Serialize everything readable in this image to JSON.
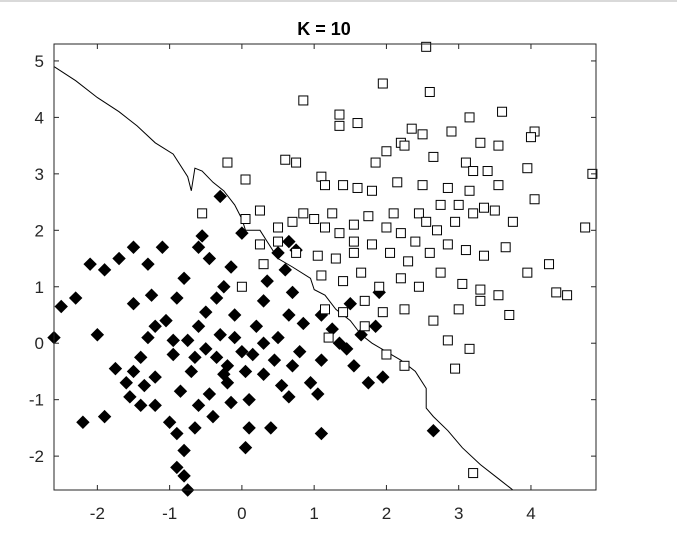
{
  "chart_data": {
    "type": "scatter",
    "title": "K = 10",
    "xlabel": "",
    "ylabel": "",
    "xlim": [
      -2.6,
      4.9
    ],
    "ylim": [
      -2.6,
      5.3
    ],
    "xticks": [
      -2,
      -1,
      0,
      1,
      2,
      3,
      4
    ],
    "yticks": [
      -2,
      -1,
      0,
      1,
      2,
      3,
      4,
      5
    ],
    "x_tick_labels": [
      "-2",
      "-1",
      "0",
      "1",
      "2",
      "3",
      "4"
    ],
    "y_tick_labels": [
      "-2",
      "-1",
      "0",
      "1",
      "2",
      "3",
      "4",
      "5"
    ],
    "grid": false,
    "series": [
      {
        "marker": "diamond",
        "fill": "#000000",
        "points": [
          [
            -2.6,
            0.1
          ],
          [
            -2.5,
            0.65
          ],
          [
            -2.3,
            0.8
          ],
          [
            -2.1,
            1.4
          ],
          [
            -1.9,
            1.3
          ],
          [
            -2.0,
            0.15
          ],
          [
            -2.2,
            -1.4
          ],
          [
            -1.9,
            -1.3
          ],
          [
            -1.7,
            1.5
          ],
          [
            -1.5,
            1.7
          ],
          [
            -1.3,
            1.4
          ],
          [
            -1.5,
            0.7
          ],
          [
            -1.6,
            -0.7
          ],
          [
            -1.4,
            -1.1
          ],
          [
            -1.2,
            -1.1
          ],
          [
            -1.0,
            -1.4
          ],
          [
            -0.9,
            -1.6
          ],
          [
            -0.8,
            -1.9
          ],
          [
            -0.9,
            -2.2
          ],
          [
            -0.8,
            -2.35
          ],
          [
            -0.75,
            -2.6
          ],
          [
            -1.1,
            1.7
          ],
          [
            -0.9,
            0.8
          ],
          [
            -1.05,
            0.4
          ],
          [
            -1.2,
            0.3
          ],
          [
            -1.3,
            0.1
          ],
          [
            -1.4,
            -0.25
          ],
          [
            -1.5,
            -0.5
          ],
          [
            -1.2,
            -0.6
          ],
          [
            -0.95,
            -0.2
          ],
          [
            -0.75,
            0.05
          ],
          [
            -0.6,
            0.3
          ],
          [
            -0.5,
            0.55
          ],
          [
            -0.35,
            0.8
          ],
          [
            -0.25,
            1.0
          ],
          [
            -0.15,
            1.35
          ],
          [
            -0.1,
            0.1
          ],
          [
            0.0,
            -0.15
          ],
          [
            0.05,
            -0.5
          ],
          [
            -0.2,
            -0.7
          ],
          [
            -0.45,
            -0.9
          ],
          [
            -0.6,
            -1.1
          ],
          [
            -0.65,
            -1.5
          ],
          [
            -0.4,
            -1.3
          ],
          [
            -0.15,
            -1.05
          ],
          [
            0.1,
            -1.0
          ],
          [
            0.3,
            -0.55
          ],
          [
            0.45,
            -0.3
          ],
          [
            0.5,
            0.1
          ],
          [
            0.55,
            -0.75
          ],
          [
            0.65,
            -0.95
          ],
          [
            0.7,
            -0.4
          ],
          [
            0.8,
            -0.15
          ],
          [
            0.85,
            0.35
          ],
          [
            0.7,
            0.9
          ],
          [
            0.6,
            1.3
          ],
          [
            0.5,
            1.6
          ],
          [
            0.65,
            1.8
          ],
          [
            0.75,
            1.65
          ],
          [
            0.4,
            -1.5
          ],
          [
            0.1,
            -1.5
          ],
          [
            0.05,
            -1.85
          ],
          [
            -0.55,
            1.9
          ],
          [
            -0.6,
            1.7
          ],
          [
            -0.45,
            1.5
          ],
          [
            -0.3,
            2.6
          ],
          [
            0.0,
            1.95
          ],
          [
            0.3,
            0.75
          ],
          [
            0.35,
            1.1
          ],
          [
            1.1,
            0.5
          ],
          [
            1.25,
            0.25
          ],
          [
            1.35,
            0.0
          ],
          [
            1.45,
            -0.1
          ],
          [
            1.55,
            -0.4
          ],
          [
            1.75,
            -0.7
          ],
          [
            1.95,
            -0.6
          ],
          [
            1.65,
            0.15
          ],
          [
            1.85,
            0.3
          ],
          [
            1.1,
            -0.3
          ],
          [
            1.05,
            -0.9
          ],
          [
            1.1,
            -1.6
          ],
          [
            0.95,
            -0.7
          ],
          [
            0.2,
            0.3
          ],
          [
            -0.1,
            0.5
          ],
          [
            -0.3,
            0.15
          ],
          [
            -0.5,
            -0.1
          ],
          [
            -0.7,
            -0.5
          ],
          [
            -0.85,
            -0.85
          ],
          [
            -1.25,
            0.85
          ],
          [
            -0.8,
            1.15
          ],
          [
            -0.35,
            -0.25
          ],
          [
            -0.2,
            -0.4
          ],
          [
            0.15,
            -0.2
          ],
          [
            0.3,
            0.0
          ],
          [
            2.65,
            -1.55
          ],
          [
            1.5,
            0.7
          ],
          [
            1.9,
            0.9
          ],
          [
            -1.75,
            -0.45
          ],
          [
            -1.55,
            -0.95
          ],
          [
            -1.35,
            -0.75
          ],
          [
            -0.95,
            0.05
          ],
          [
            -0.65,
            -0.25
          ],
          [
            -0.25,
            -0.55
          ],
          [
            0.65,
            0.5
          ]
        ]
      },
      {
        "marker": "square",
        "fill": "#ffffff",
        "points": [
          [
            2.55,
            5.25
          ],
          [
            1.95,
            4.6
          ],
          [
            2.6,
            4.45
          ],
          [
            0.85,
            4.3
          ],
          [
            1.35,
            4.05
          ],
          [
            1.35,
            3.85
          ],
          [
            1.6,
            3.9
          ],
          [
            3.15,
            4.0
          ],
          [
            3.6,
            4.1
          ],
          [
            2.35,
            3.8
          ],
          [
            2.5,
            3.7
          ],
          [
            2.9,
            3.75
          ],
          [
            4.05,
            3.75
          ],
          [
            4.0,
            3.65
          ],
          [
            3.3,
            3.55
          ],
          [
            3.55,
            3.5
          ],
          [
            2.2,
            3.55
          ],
          [
            2.25,
            3.5
          ],
          [
            2.0,
            3.4
          ],
          [
            2.65,
            3.3
          ],
          [
            3.1,
            3.2
          ],
          [
            3.2,
            3.05
          ],
          [
            3.4,
            3.05
          ],
          [
            3.95,
            3.1
          ],
          [
            4.85,
            3.0
          ],
          [
            -0.2,
            3.2
          ],
          [
            0.05,
            2.9
          ],
          [
            0.6,
            3.25
          ],
          [
            0.75,
            3.2
          ],
          [
            1.1,
            2.95
          ],
          [
            1.15,
            2.8
          ],
          [
            1.4,
            2.8
          ],
          [
            1.6,
            2.75
          ],
          [
            1.8,
            2.7
          ],
          [
            2.15,
            2.85
          ],
          [
            2.5,
            2.8
          ],
          [
            2.85,
            2.75
          ],
          [
            3.15,
            2.7
          ],
          [
            3.55,
            2.8
          ],
          [
            4.05,
            2.55
          ],
          [
            4.75,
            2.05
          ],
          [
            -0.55,
            2.3
          ],
          [
            0.05,
            2.2
          ],
          [
            0.25,
            2.35
          ],
          [
            0.5,
            2.05
          ],
          [
            0.7,
            2.15
          ],
          [
            0.85,
            2.3
          ],
          [
            1.0,
            2.2
          ],
          [
            1.15,
            2.05
          ],
          [
            1.35,
            1.95
          ],
          [
            1.55,
            2.1
          ],
          [
            1.75,
            2.25
          ],
          [
            2.0,
            2.05
          ],
          [
            2.2,
            1.95
          ],
          [
            2.45,
            2.3
          ],
          [
            2.7,
            2.0
          ],
          [
            2.95,
            2.15
          ],
          [
            3.2,
            2.3
          ],
          [
            3.5,
            2.35
          ],
          [
            3.75,
            2.15
          ],
          [
            0.25,
            1.75
          ],
          [
            0.5,
            1.8
          ],
          [
            0.75,
            1.6
          ],
          [
            1.05,
            1.55
          ],
          [
            1.3,
            1.5
          ],
          [
            1.55,
            1.6
          ],
          [
            1.8,
            1.75
          ],
          [
            2.05,
            1.6
          ],
          [
            2.3,
            1.45
          ],
          [
            2.6,
            1.6
          ],
          [
            2.85,
            1.75
          ],
          [
            3.1,
            1.65
          ],
          [
            3.35,
            1.55
          ],
          [
            3.65,
            1.7
          ],
          [
            1.1,
            1.2
          ],
          [
            1.4,
            1.1
          ],
          [
            1.65,
            1.25
          ],
          [
            1.9,
            1.0
          ],
          [
            2.2,
            1.15
          ],
          [
            2.45,
            1.0
          ],
          [
            2.75,
            1.25
          ],
          [
            3.05,
            1.05
          ],
          [
            3.3,
            0.95
          ],
          [
            3.55,
            0.85
          ],
          [
            3.95,
            1.25
          ],
          [
            4.25,
            1.4
          ],
          [
            4.35,
            0.9
          ],
          [
            4.5,
            0.85
          ],
          [
            1.15,
            0.6
          ],
          [
            1.4,
            0.55
          ],
          [
            1.7,
            0.75
          ],
          [
            1.95,
            0.55
          ],
          [
            2.25,
            0.6
          ],
          [
            2.65,
            0.4
          ],
          [
            3.0,
            0.6
          ],
          [
            3.3,
            0.75
          ],
          [
            3.7,
            0.5
          ],
          [
            2.0,
            -0.2
          ],
          [
            2.25,
            -0.4
          ],
          [
            2.85,
            0.05
          ],
          [
            3.15,
            -0.1
          ],
          [
            2.95,
            -0.45
          ],
          [
            3.2,
            -2.3
          ],
          [
            0.0,
            1.0
          ],
          [
            0.3,
            1.4
          ],
          [
            1.2,
            0.1
          ],
          [
            1.7,
            0.3
          ],
          [
            2.4,
            1.8
          ],
          [
            2.75,
            2.45
          ],
          [
            3.0,
            2.45
          ],
          [
            3.35,
            2.4
          ],
          [
            1.85,
            3.2
          ],
          [
            1.25,
            2.3
          ],
          [
            1.55,
            1.8
          ],
          [
            2.1,
            2.3
          ],
          [
            2.55,
            2.15
          ]
        ]
      }
    ],
    "decision_boundary": [
      [
        -2.6,
        4.9
      ],
      [
        -2.3,
        4.65
      ],
      [
        -2.0,
        4.35
      ],
      [
        -1.7,
        4.1
      ],
      [
        -1.45,
        3.85
      ],
      [
        -1.2,
        3.55
      ],
      [
        -0.95,
        3.35
      ],
      [
        -0.75,
        2.95
      ],
      [
        -0.7,
        2.7
      ],
      [
        -0.65,
        3.1
      ],
      [
        -0.55,
        3.05
      ],
      [
        -0.4,
        2.85
      ],
      [
        -0.25,
        2.7
      ],
      [
        -0.1,
        2.45
      ],
      [
        0.0,
        2.2
      ],
      [
        0.05,
        2.0
      ],
      [
        0.25,
        2.0
      ],
      [
        0.35,
        1.8
      ],
      [
        0.5,
        1.5
      ],
      [
        0.7,
        1.35
      ],
      [
        0.95,
        1.15
      ],
      [
        1.0,
        0.95
      ],
      [
        1.15,
        0.85
      ],
      [
        1.3,
        0.6
      ],
      [
        1.5,
        0.4
      ],
      [
        1.65,
        0.15
      ],
      [
        1.8,
        0.0
      ],
      [
        2.0,
        -0.15
      ],
      [
        2.2,
        -0.3
      ],
      [
        2.4,
        -0.5
      ],
      [
        2.55,
        -0.8
      ],
      [
        2.55,
        -1.15
      ],
      [
        2.65,
        -1.3
      ],
      [
        2.85,
        -1.55
      ],
      [
        3.05,
        -1.85
      ],
      [
        3.3,
        -2.15
      ],
      [
        3.55,
        -2.4
      ],
      [
        3.75,
        -2.6
      ]
    ]
  }
}
